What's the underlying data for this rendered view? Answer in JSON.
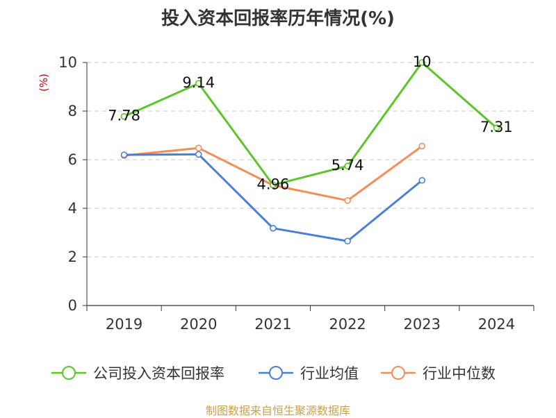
{
  "chart_data": {
    "type": "line",
    "title": "投入资本回报率历年情况(%)",
    "unit": "(%)",
    "categories": [
      "2019",
      "2020",
      "2021",
      "2022",
      "2023",
      "2024"
    ],
    "ylim": [
      0,
      10
    ],
    "yticks": [
      "0",
      "2",
      "4",
      "6",
      "8",
      "10"
    ],
    "grid": true,
    "legend_position": "bottom",
    "series": [
      {
        "name": "公司投入资本回报率",
        "color": "#5cc52a",
        "values": [
          7.78,
          9.14,
          4.96,
          5.74,
          10,
          7.31
        ],
        "labels": [
          "7.78",
          "9.14",
          "4.96",
          "5.74",
          "10",
          "7.31"
        ]
      },
      {
        "name": "行业均值",
        "color": "#4a7fd8",
        "values": [
          6.2,
          6.22,
          3.18,
          2.65,
          5.15,
          null
        ]
      },
      {
        "name": "行业中位数",
        "color": "#f58d5a",
        "values": [
          6.17,
          6.48,
          4.95,
          4.32,
          6.56,
          null
        ]
      }
    ]
  },
  "source_note": "制图数据来自恒生聚源数据库"
}
